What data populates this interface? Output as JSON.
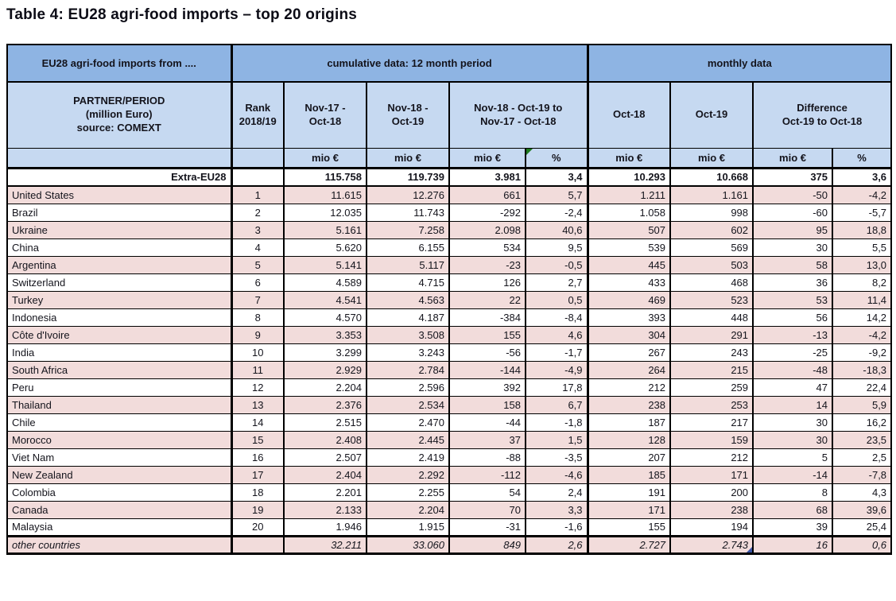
{
  "title": "Table 4: EU28 agri-food imports – top 20 origins",
  "colors": {
    "header_band_blue": "#8eb4e3",
    "header_light_blue": "#c6d9f1",
    "row_stripe_pink": "#f2dcdb",
    "row_white": "#ffffff",
    "border_black": "#000000",
    "comment_marker_green": "#1e7a1e",
    "comment_marker_blue": "#3a53a4"
  },
  "table": {
    "header": {
      "corner_label": "EU28 agri-food imports from ....",
      "group_cumulative": "cumulative data: 12 month period",
      "group_monthly": "monthly data",
      "partner_label": "PARTNER/PERIOD\n(million Euro)\nsource: COMEXT",
      "columns": [
        "Rank\n2018/19",
        "Nov-17 -\nOct-18",
        "Nov-18 -\nOct-19",
        "Nov-18 - Oct-19 to\nNov-17 - Oct-18",
        "Oct-18",
        "Oct-19",
        "Difference\nOct-19 to Oct-18"
      ],
      "units": [
        "mio €",
        "mio €",
        "mio €",
        "%",
        "mio €",
        "mio €",
        "mio €",
        "%"
      ],
      "green_marker_unit_index": 3
    },
    "total_row": {
      "partner": "Extra-EU28",
      "rank": "",
      "values": [
        "115.758",
        "119.739",
        "3.981",
        "3,4",
        "10.293",
        "10.668",
        "375",
        "3,6"
      ]
    },
    "rows": [
      {
        "partner": "United States",
        "rank": "1",
        "values": [
          "11.615",
          "12.276",
          "661",
          "5,7",
          "1.211",
          "1.161",
          "-50",
          "-4,2"
        ]
      },
      {
        "partner": "Brazil",
        "rank": "2",
        "values": [
          "12.035",
          "11.743",
          "-292",
          "-2,4",
          "1.058",
          "998",
          "-60",
          "-5,7"
        ]
      },
      {
        "partner": "Ukraine",
        "rank": "3",
        "values": [
          "5.161",
          "7.258",
          "2.098",
          "40,6",
          "507",
          "602",
          "95",
          "18,8"
        ]
      },
      {
        "partner": "China",
        "rank": "4",
        "values": [
          "5.620",
          "6.155",
          "534",
          "9,5",
          "539",
          "569",
          "30",
          "5,5"
        ]
      },
      {
        "partner": "Argentina",
        "rank": "5",
        "values": [
          "5.141",
          "5.117",
          "-23",
          "-0,5",
          "445",
          "503",
          "58",
          "13,0"
        ]
      },
      {
        "partner": "Switzerland",
        "rank": "6",
        "values": [
          "4.589",
          "4.715",
          "126",
          "2,7",
          "433",
          "468",
          "36",
          "8,2"
        ]
      },
      {
        "partner": "Turkey",
        "rank": "7",
        "values": [
          "4.541",
          "4.563",
          "22",
          "0,5",
          "469",
          "523",
          "53",
          "11,4"
        ]
      },
      {
        "partner": "Indonesia",
        "rank": "8",
        "values": [
          "4.570",
          "4.187",
          "-384",
          "-8,4",
          "393",
          "448",
          "56",
          "14,2"
        ]
      },
      {
        "partner": "Côte d'Ivoire",
        "rank": "9",
        "values": [
          "3.353",
          "3.508",
          "155",
          "4,6",
          "304",
          "291",
          "-13",
          "-4,2"
        ]
      },
      {
        "partner": "India",
        "rank": "10",
        "values": [
          "3.299",
          "3.243",
          "-56",
          "-1,7",
          "267",
          "243",
          "-25",
          "-9,2"
        ]
      },
      {
        "partner": "South Africa",
        "rank": "11",
        "values": [
          "2.929",
          "2.784",
          "-144",
          "-4,9",
          "264",
          "215",
          "-48",
          "-18,3"
        ]
      },
      {
        "partner": "Peru",
        "rank": "12",
        "values": [
          "2.204",
          "2.596",
          "392",
          "17,8",
          "212",
          "259",
          "47",
          "22,4"
        ]
      },
      {
        "partner": "Thailand",
        "rank": "13",
        "values": [
          "2.376",
          "2.534",
          "158",
          "6,7",
          "238",
          "253",
          "14",
          "5,9"
        ]
      },
      {
        "partner": "Chile",
        "rank": "14",
        "values": [
          "2.515",
          "2.470",
          "-44",
          "-1,8",
          "187",
          "217",
          "30",
          "16,2"
        ]
      },
      {
        "partner": "Morocco",
        "rank": "15",
        "values": [
          "2.408",
          "2.445",
          "37",
          "1,5",
          "128",
          "159",
          "30",
          "23,5"
        ]
      },
      {
        "partner": "Viet Nam",
        "rank": "16",
        "values": [
          "2.507",
          "2.419",
          "-88",
          "-3,5",
          "207",
          "212",
          "5",
          "2,5"
        ]
      },
      {
        "partner": "New Zealand",
        "rank": "17",
        "values": [
          "2.404",
          "2.292",
          "-112",
          "-4,6",
          "185",
          "171",
          "-14",
          "-7,8"
        ]
      },
      {
        "partner": "Colombia",
        "rank": "18",
        "values": [
          "2.201",
          "2.255",
          "54",
          "2,4",
          "191",
          "200",
          "8",
          "4,3"
        ]
      },
      {
        "partner": "Canada",
        "rank": "19",
        "values": [
          "2.133",
          "2.204",
          "70",
          "3,3",
          "171",
          "238",
          "68",
          "39,6"
        ]
      },
      {
        "partner": "Malaysia",
        "rank": "20",
        "values": [
          "1.946",
          "1.915",
          "-31",
          "-1,6",
          "155",
          "194",
          "39",
          "25,4"
        ]
      }
    ],
    "footer_row": {
      "partner": "other countries",
      "rank": "",
      "values": [
        "32.211",
        "33.060",
        "849",
        "2,6",
        "2.727",
        "2.743",
        "16",
        "0,6"
      ],
      "blue_marker_value_index": 5
    }
  }
}
